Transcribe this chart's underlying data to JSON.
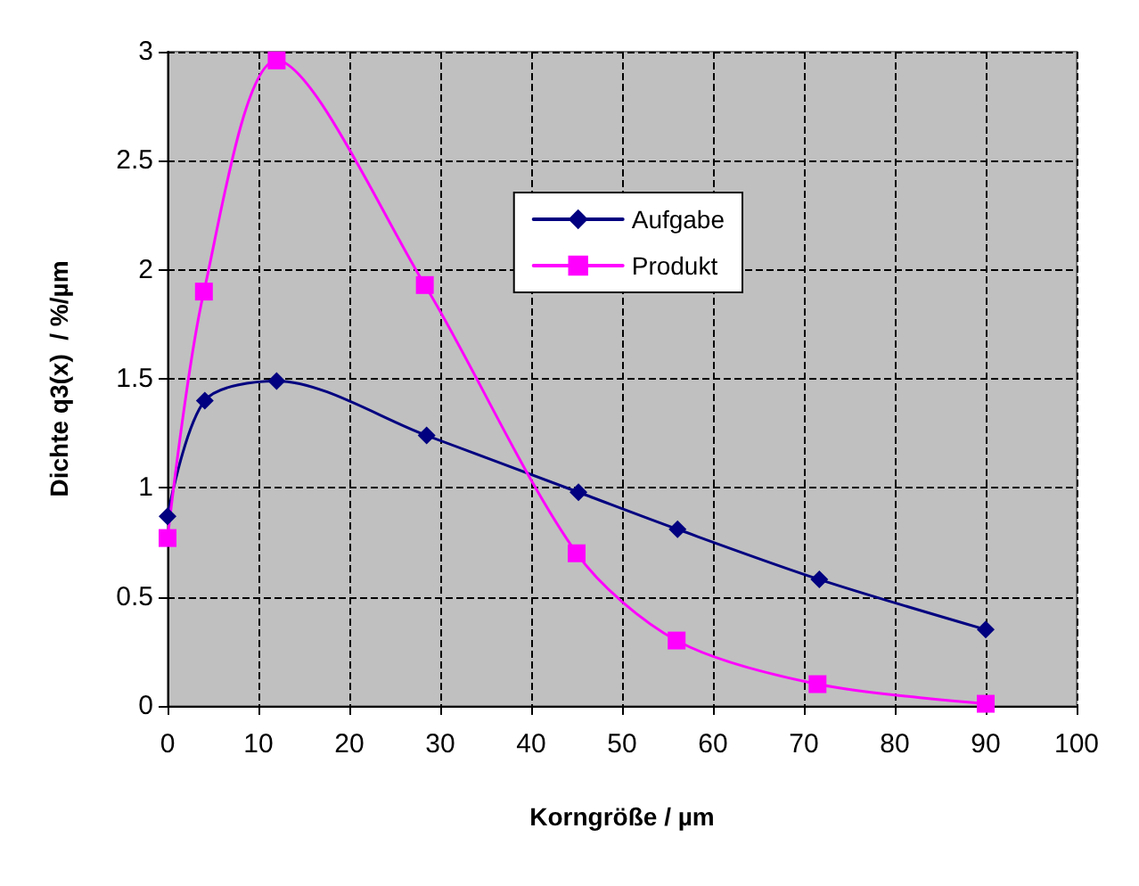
{
  "chart_data": {
    "type": "line",
    "xlabel": "Korngröße / µm",
    "ylabel": "Dichte q3(x)  / %/µm",
    "xlim": [
      0,
      100
    ],
    "xticks": [
      0,
      10,
      20,
      30,
      40,
      50,
      60,
      70,
      80,
      90,
      100
    ],
    "ylim": [
      0,
      3
    ],
    "yticks": [
      0,
      0.5,
      1,
      1.5,
      2,
      2.5,
      3
    ],
    "grid": true,
    "legend": "top",
    "line_style": "solid",
    "series": [
      {
        "name": "Aufgabe",
        "color": "#000080",
        "marker": "diamond",
        "x": [
          0,
          4.1,
          12,
          28.5,
          45.2,
          56.1,
          71.7,
          90
        ],
        "values": [
          0.87,
          1.4,
          1.49,
          1.24,
          0.98,
          0.81,
          0.58,
          0.35
        ]
      },
      {
        "name": "Produkt",
        "color": "#ff00ff",
        "marker": "square",
        "x": [
          0,
          4,
          12,
          28.3,
          45,
          56,
          71.5,
          90
        ],
        "values": [
          0.77,
          1.9,
          2.96,
          1.93,
          0.7,
          0.3,
          0.1,
          0.01
        ]
      }
    ]
  }
}
